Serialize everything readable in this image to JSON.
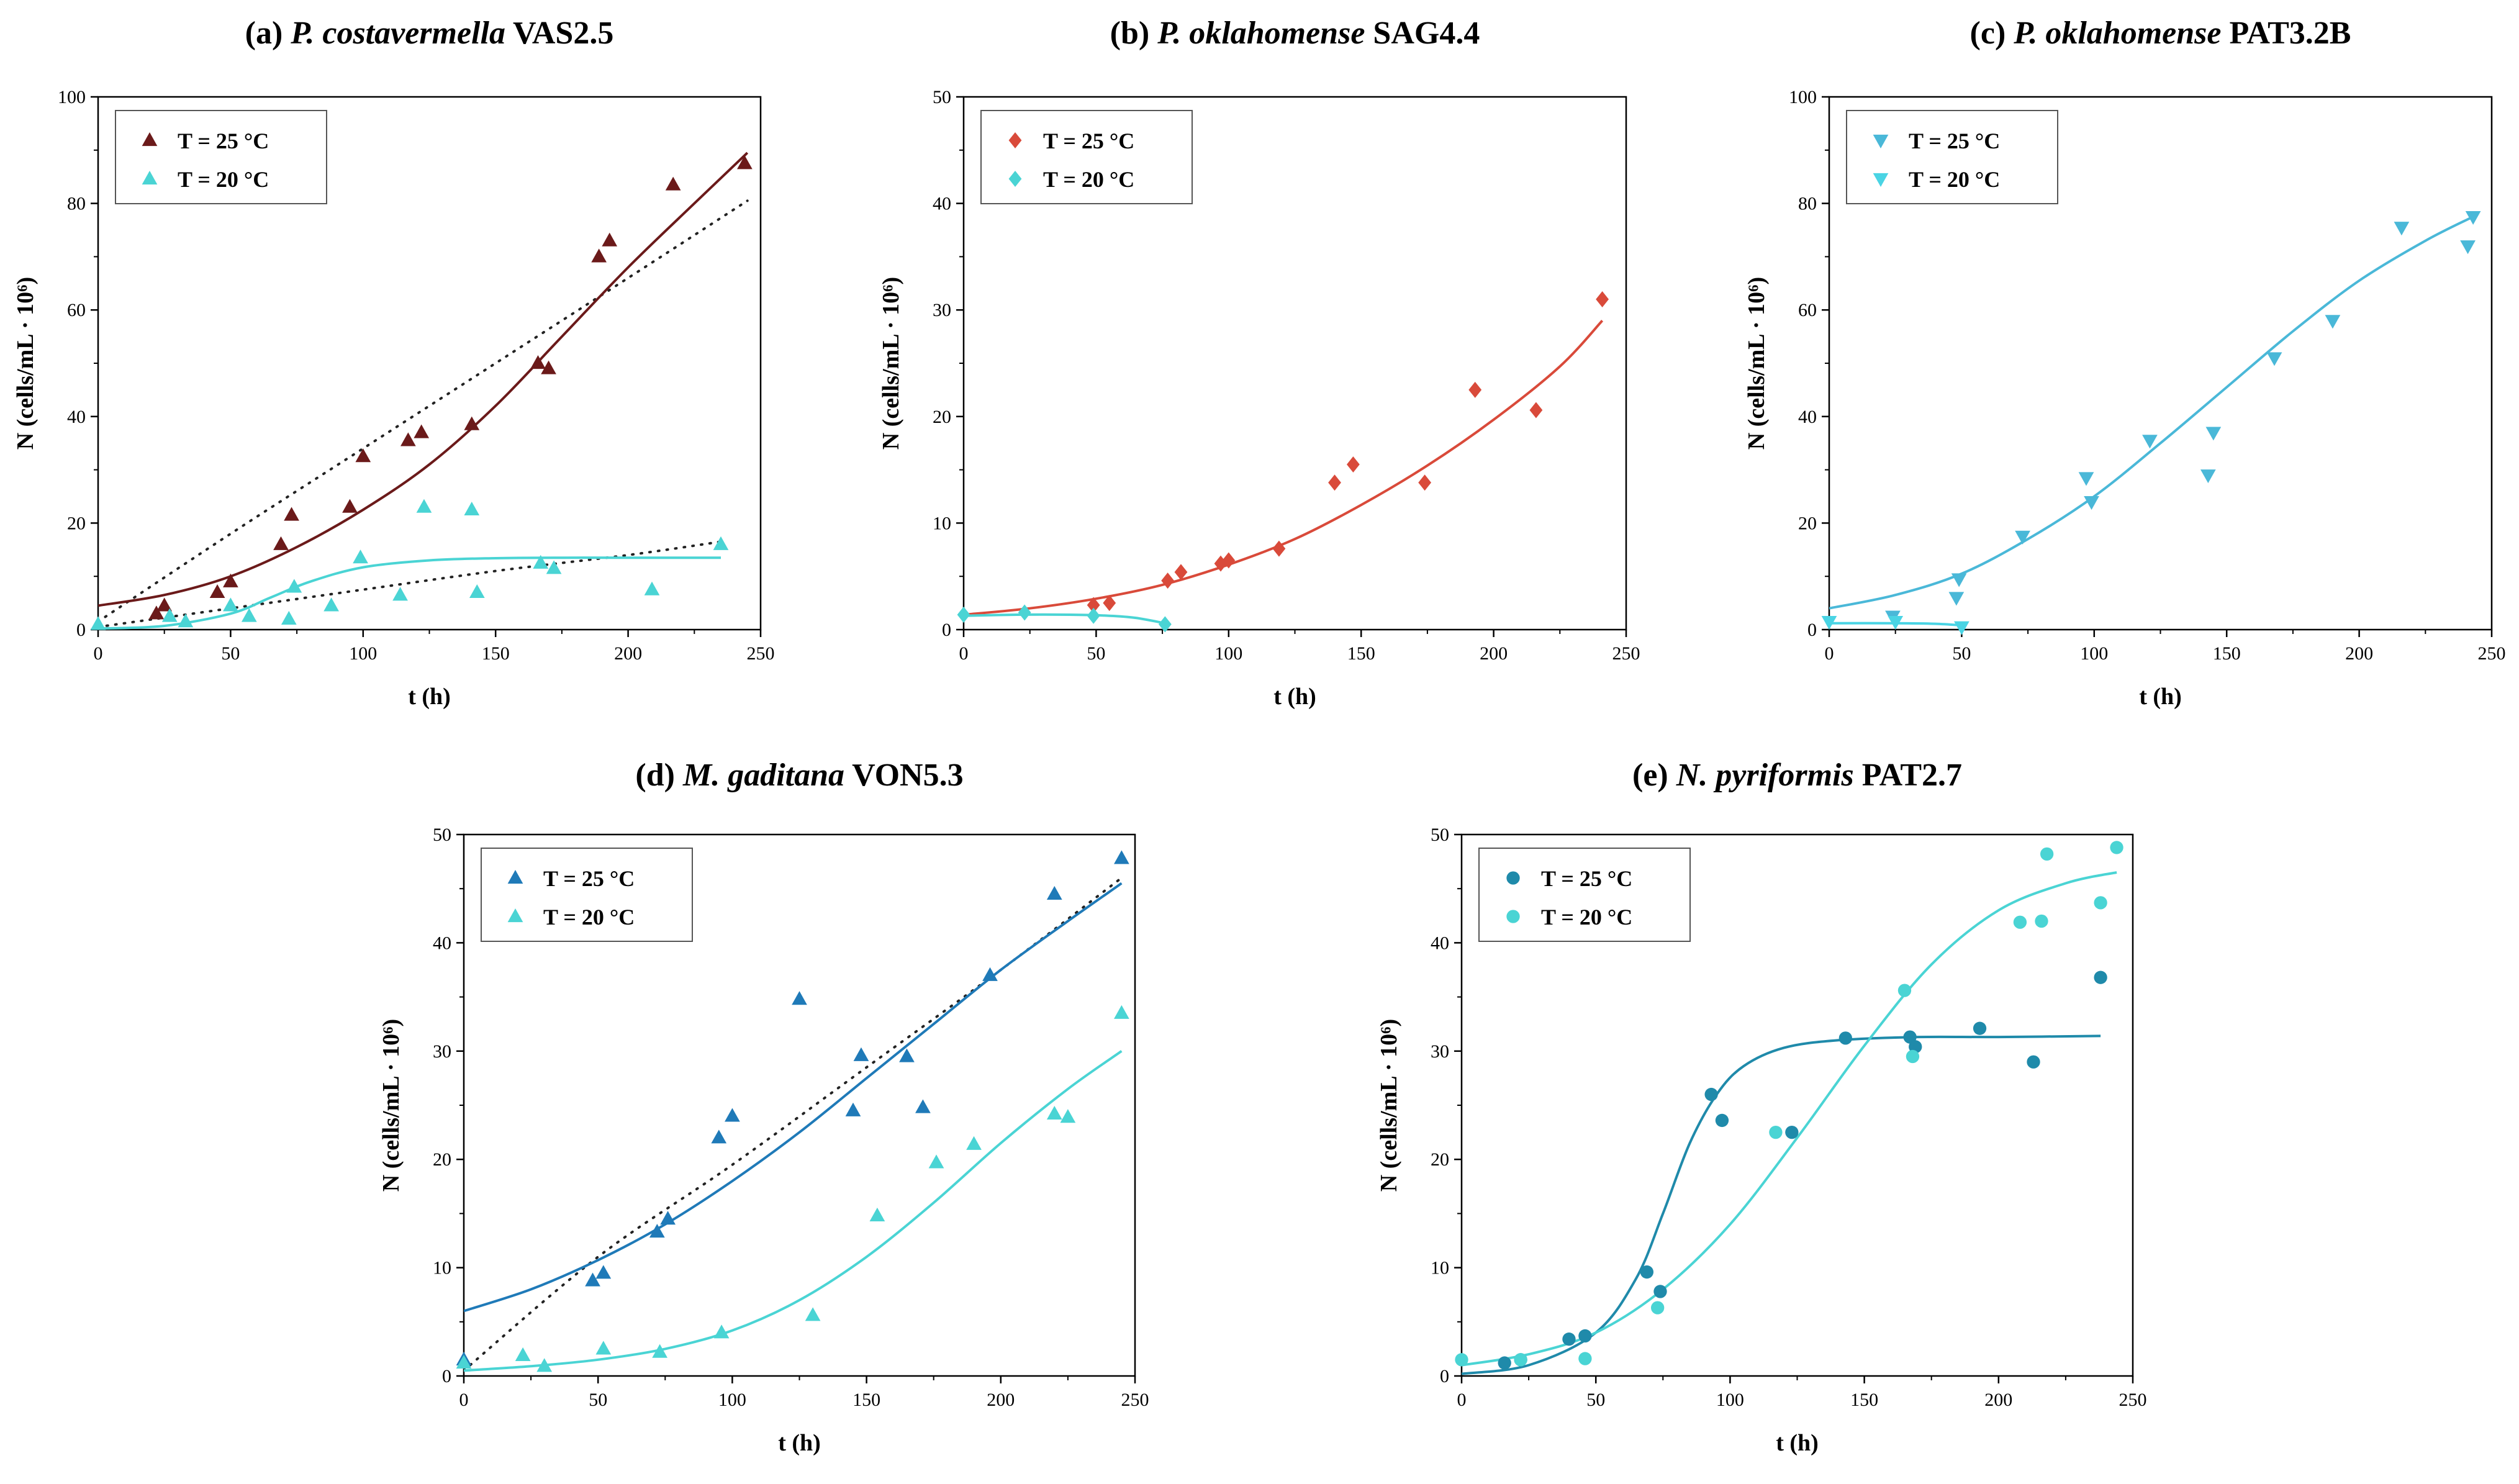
{
  "chart_data": [
    {
      "type": "scatter",
      "panel": "a",
      "title_prefix": "(a)",
      "title_species": "P. costavermella",
      "title_strain": "VAS2.5",
      "xlabel": "t (h)",
      "ylabel": "N (cells/mL · 10⁶)",
      "xlim": [
        0,
        250
      ],
      "ylim": [
        0,
        100
      ],
      "xticks": [
        0,
        50,
        100,
        150,
        200,
        250
      ],
      "yticks": [
        0,
        20,
        40,
        60,
        80,
        100
      ],
      "legend_position": "top-left",
      "series": [
        {
          "name": "T = 25 °C",
          "marker": "triangle-up",
          "color": "#6b1a1a",
          "x": [
            22,
            25,
            45,
            50,
            69,
            73,
            95,
            100,
            117,
            122,
            141,
            166,
            170,
            189,
            193,
            217,
            244
          ],
          "y": [
            3,
            4.5,
            7,
            9,
            16,
            21.5,
            23,
            32.5,
            35.5,
            37,
            38.5,
            50,
            49,
            70,
            73,
            83.5,
            87.5
          ],
          "fit": {
            "x": [
              0,
              25,
              50,
              75,
              100,
              125,
              150,
              175,
              200,
              225,
              245
            ],
            "y": [
              4.5,
              6.5,
              10,
              15.5,
              22.5,
              31,
              42,
              55,
              68,
              80,
              89.5
            ]
          },
          "dotted_fit": {
            "x": [
              0,
              50,
              100,
              150,
              200,
              245
            ],
            "y": [
              1.5,
              18,
              34,
              50,
              66,
              80.5
            ]
          }
        },
        {
          "name": "T = 20 °C",
          "marker": "triangle-up",
          "color": "#4ad4d4",
          "x": [
            0,
            27,
            33,
            50,
            57,
            72,
            74,
            88,
            99,
            114,
            123,
            141,
            143,
            167,
            172,
            209,
            235
          ],
          "y": [
            1,
            2.5,
            1.5,
            4.5,
            2.5,
            2,
            8,
            4.5,
            13.5,
            6.5,
            23,
            22.5,
            7,
            12.5,
            11.5,
            7.5,
            16
          ],
          "fit": {
            "x": [
              0,
              25,
              50,
              65,
              80,
              100,
              125,
              150,
              175,
              200,
              235
            ],
            "y": [
              0.2,
              0.7,
              3,
              6,
              9,
              11.7,
              13,
              13.4,
              13.5,
              13.5,
              13.5
            ]
          },
          "dotted_fit": {
            "x": [
              0,
              50,
              100,
              150,
              200,
              235
            ],
            "y": [
              0.5,
              4,
              7.5,
              11,
              14,
              16.5
            ]
          }
        }
      ]
    },
    {
      "type": "scatter",
      "panel": "b",
      "title_prefix": "(b)",
      "title_species": "P. oklahomense",
      "title_strain": "SAG4.4",
      "xlabel": "t (h)",
      "ylabel": "N (cells/mL · 10⁶)",
      "xlim": [
        0,
        250
      ],
      "ylim": [
        0,
        50
      ],
      "xticks": [
        0,
        50,
        100,
        150,
        200,
        250
      ],
      "yticks": [
        0,
        10,
        20,
        30,
        40,
        50
      ],
      "legend_position": "top-left",
      "series": [
        {
          "name": "T = 25 °C",
          "marker": "diamond",
          "color": "#d94a3a",
          "x": [
            49,
            55,
            77,
            82,
            97,
            100,
            119,
            140,
            147,
            174,
            193,
            216,
            241
          ],
          "y": [
            2.3,
            2.5,
            4.6,
            5.4,
            6.2,
            6.5,
            7.6,
            13.8,
            15.5,
            13.8,
            22.5,
            20.6,
            31
          ],
          "fit": {
            "x": [
              0,
              25,
              50,
              75,
              100,
              125,
              150,
              175,
              200,
              225,
              241
            ],
            "y": [
              1.4,
              2,
              2.9,
              4.2,
              6.1,
              8.5,
              11.7,
              15.4,
              19.7,
              24.7,
              29
            ]
          }
        },
        {
          "name": "T = 20 °C",
          "marker": "diamond",
          "color": "#4ad4d4",
          "x": [
            0,
            23,
            49,
            76
          ],
          "y": [
            1.4,
            1.6,
            1.3,
            0.5
          ],
          "fit": {
            "x": [
              0,
              20,
              40,
              55,
              65,
              76
            ],
            "y": [
              1.3,
              1.4,
              1.4,
              1.3,
              1.1,
              0.6
            ]
          }
        }
      ]
    },
    {
      "type": "scatter",
      "panel": "c",
      "title_prefix": "(c)",
      "title_species": "P. oklahomense",
      "title_strain": "PAT3.2B",
      "xlabel": "t (h)",
      "ylabel": "N (cells/mL · 10⁶)",
      "xlim": [
        0,
        250
      ],
      "ylim": [
        0,
        100
      ],
      "xticks": [
        0,
        50,
        100,
        150,
        200,
        250
      ],
      "yticks": [
        0,
        20,
        40,
        60,
        80,
        100
      ],
      "legend_position": "top-left",
      "series": [
        {
          "name": "T = 25 °C",
          "marker": "triangle-down",
          "color": "#4ab8d8",
          "x": [
            24,
            48,
            49,
            73,
            97,
            99,
            121,
            143,
            145,
            168,
            190,
            216,
            241,
            243
          ],
          "y": [
            2.5,
            6,
            9.5,
            17.5,
            28.5,
            24,
            35.5,
            29,
            37,
            51,
            58,
            75.5,
            72,
            77.5
          ],
          "fit": {
            "x": [
              0,
              25,
              50,
              75,
              100,
              125,
              150,
              175,
              200,
              225,
              243
            ],
            "y": [
              4,
              6.5,
              10.5,
              17,
              25,
              35,
              45.5,
              56,
              65.5,
              73,
              77.5
            ]
          }
        },
        {
          "name": "T = 20 °C",
          "marker": "triangle-down",
          "color": "#4ad4e4",
          "x": [
            0,
            25,
            50
          ],
          "y": [
            1.5,
            1.5,
            0.5
          ],
          "fit": {
            "x": [
              0,
              25,
              40,
              50
            ],
            "y": [
              1.2,
              1.2,
              1.1,
              0.8
            ]
          }
        }
      ]
    },
    {
      "type": "scatter",
      "panel": "d",
      "title_prefix": "(d)",
      "title_species": "M. gaditana",
      "title_strain": "VON5.3",
      "xlabel": "t (h)",
      "ylabel": "N (cells/mL · 10⁶)",
      "xlim": [
        0,
        250
      ],
      "ylim": [
        0,
        50
      ],
      "xticks": [
        0,
        50,
        100,
        150,
        200,
        250
      ],
      "yticks": [
        0,
        10,
        20,
        30,
        40,
        50
      ],
      "legend_position": "top-left",
      "series": [
        {
          "name": "T = 25 °C",
          "marker": "triangle-up",
          "color": "#1f7ab8",
          "x": [
            0,
            48,
            52,
            72,
            76,
            95,
            100,
            125,
            145,
            148,
            165,
            171,
            196,
            220,
            245
          ],
          "y": [
            1.5,
            8.8,
            9.5,
            13.3,
            14.5,
            22,
            24,
            34.8,
            24.5,
            29.6,
            29.5,
            24.8,
            37,
            44.5,
            47.8
          ],
          "fit": {
            "x": [
              0,
              25,
              50,
              75,
              100,
              125,
              150,
              175,
              200,
              225,
              245
            ],
            "y": [
              6,
              8,
              10.7,
              14,
              18,
              22.5,
              27.5,
              32.5,
              37.5,
              42,
              45.5
            ]
          },
          "dotted_fit": {
            "x": [
              0,
              50,
              100,
              150,
              200,
              245
            ],
            "y": [
              0.5,
              11,
              19.5,
              28.5,
              37.5,
              46
            ]
          }
        },
        {
          "name": "T = 20 °C",
          "marker": "triangle-up",
          "color": "#4ad4d4",
          "x": [
            0,
            22,
            30,
            52,
            73,
            96,
            130,
            154,
            176,
            190,
            220,
            225,
            245
          ],
          "y": [
            1.2,
            1.9,
            0.9,
            2.5,
            2.2,
            4,
            5.6,
            14.8,
            19.7,
            21.4,
            24.2,
            23.9,
            33.5
          ],
          "fit": {
            "x": [
              0,
              25,
              50,
              75,
              100,
              125,
              150,
              175,
              200,
              225,
              245
            ],
            "y": [
              0.5,
              0.9,
              1.5,
              2.5,
              4.2,
              7,
              11,
              16,
              21.5,
              26.5,
              30
            ]
          }
        }
      ]
    },
    {
      "type": "scatter",
      "panel": "e",
      "title_prefix": "(e)",
      "title_species": "N. pyriformis",
      "title_strain": "PAT2.7",
      "xlabel": "t (h)",
      "ylabel": "N (cells/mL · 10⁶)",
      "xlim": [
        0,
        250
      ],
      "ylim": [
        0,
        50
      ],
      "xticks": [
        0,
        50,
        100,
        150,
        200,
        250
      ],
      "yticks": [
        0,
        10,
        20,
        30,
        40,
        50
      ],
      "legend_position": "top-left",
      "series": [
        {
          "name": "T = 25 °C",
          "marker": "circle",
          "color": "#1f8aaa",
          "x": [
            16,
            22,
            40,
            46,
            69,
            74,
            93,
            97,
            123,
            143,
            167,
            169,
            193,
            213,
            238
          ],
          "y": [
            1.2,
            1.5,
            3.4,
            3.7,
            9.6,
            7.8,
            26,
            23.6,
            22.5,
            31.2,
            31.3,
            30.4,
            32.1,
            29,
            36.8
          ],
          "fit": {
            "x": [
              0,
              25,
              50,
              65,
              75,
              85,
              95,
              105,
              120,
              140,
              170,
              200,
              238
            ],
            "y": [
              0.2,
              1,
              4,
              9,
              15,
              21.5,
              26,
              28.6,
              30.3,
              31,
              31.3,
              31.3,
              31.4
            ]
          }
        },
        {
          "name": "T = 20 °C",
          "marker": "circle",
          "color": "#4ad4d4",
          "x": [
            0,
            22,
            46,
            73,
            117,
            165,
            168,
            208,
            216,
            218,
            238,
            244
          ],
          "y": [
            1.5,
            1.5,
            1.6,
            6.3,
            22.5,
            35.6,
            29.5,
            41.9,
            42,
            48.2,
            43.7,
            48.8
          ],
          "fit": {
            "x": [
              0,
              25,
              50,
              75,
              100,
              125,
              150,
              175,
              200,
              225,
              244
            ],
            "y": [
              1,
              2,
              4,
              8,
              14,
              22,
              30.5,
              38,
              43,
              45.5,
              46.5
            ]
          }
        }
      ]
    }
  ]
}
